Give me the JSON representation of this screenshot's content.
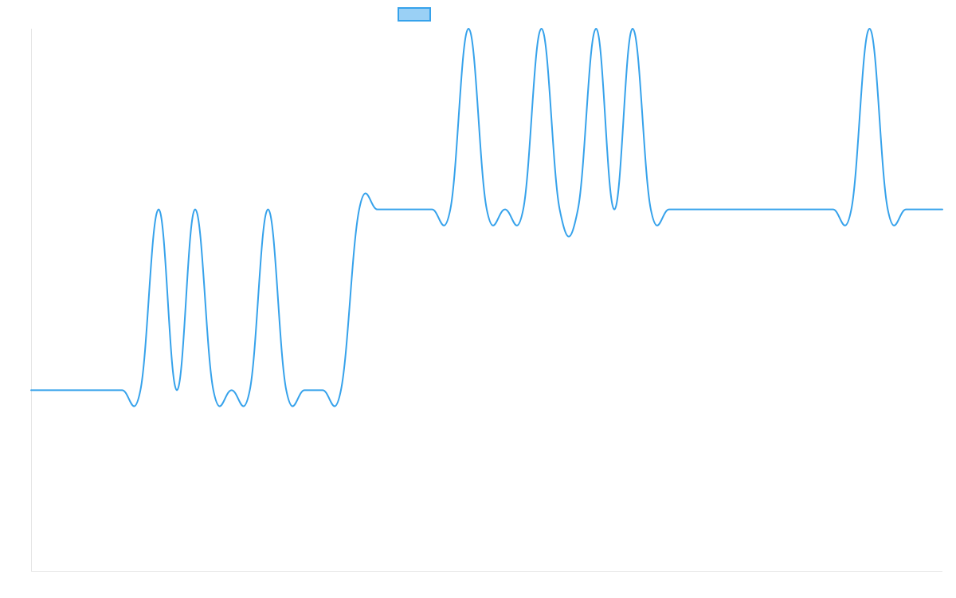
{
  "chart_data": {
    "type": "line",
    "title": "",
    "xlabel": "",
    "ylabel": "",
    "grid": false,
    "legend_placement": "top-center",
    "ylim": [
      -1,
      2
    ],
    "x": [
      0,
      1,
      2,
      3,
      4,
      5,
      6,
      7,
      8,
      9,
      10,
      11,
      12,
      13,
      14,
      15,
      16,
      17,
      18,
      19,
      20,
      21,
      22,
      23,
      24,
      25,
      26,
      27,
      28,
      29,
      30,
      31,
      32,
      33,
      34,
      35,
      36,
      37,
      38,
      39,
      40,
      41,
      42,
      43,
      44,
      45,
      46,
      47,
      48,
      49,
      50
    ],
    "series": [
      {
        "name": "",
        "color": "#36a2eb",
        "fill_color": "#9ad0f5",
        "values": [
          0,
          0,
          0,
          0,
          0,
          0,
          0,
          1,
          0,
          1,
          0,
          0,
          0,
          1,
          0,
          0,
          0,
          0,
          1,
          1,
          1,
          1,
          1,
          1,
          2,
          1,
          1,
          1,
          2,
          1,
          1,
          2,
          1,
          2,
          1,
          1,
          1,
          1,
          1,
          1,
          1,
          1,
          1,
          1,
          1,
          1,
          2,
          1,
          1,
          1,
          1
        ]
      }
    ]
  }
}
